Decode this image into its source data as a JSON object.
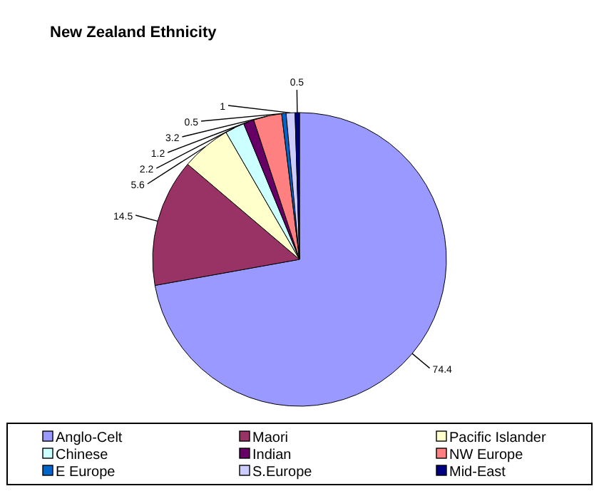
{
  "chart_data": {
    "type": "pie",
    "title": "New Zealand Ethnicity",
    "categories": [
      "Anglo-Celt",
      "Maori",
      "Pacific Islander",
      "Chinese",
      "Indian",
      "NW Europe",
      "E Europe",
      "S.Europe",
      "Mid-East"
    ],
    "values": [
      74.4,
      14.5,
      5.6,
      2.2,
      1.2,
      3.2,
      0.5,
      1,
      0.5
    ],
    "colors": [
      "#9999ff",
      "#993366",
      "#ffffcc",
      "#ccffff",
      "#660066",
      "#ff8080",
      "#0066cc",
      "#ccccff",
      "#000080"
    ],
    "data_labels": true,
    "legend": "bottom"
  }
}
